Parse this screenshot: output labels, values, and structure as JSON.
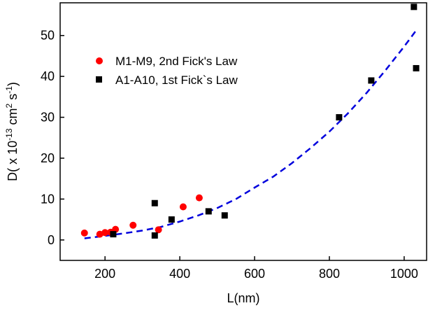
{
  "chart_data": {
    "type": "scatter",
    "xlabel": "L(nm)",
    "ylabel": {
      "base": "D( x 10",
      "exp1": "-13",
      "mid": " cm",
      "exp2": "2",
      "mid2": " s",
      "exp3": "-1",
      "end": ")"
    },
    "xlim": [
      80,
      1060
    ],
    "ylim": [
      -5,
      58
    ],
    "xticks": [
      200,
      400,
      600,
      800,
      1000
    ],
    "yticks": [
      0,
      10,
      20,
      30,
      40,
      50
    ],
    "legend_position": "upper-left",
    "series": [
      {
        "name": "M1-M9, 2nd Fick's Law",
        "marker": "circle",
        "color": "#ff0000",
        "points": [
          [
            145,
            1.7
          ],
          [
            186,
            1.4
          ],
          [
            200,
            1.8
          ],
          [
            215,
            1.9
          ],
          [
            228,
            2.6
          ],
          [
            275,
            3.6
          ],
          [
            343,
            2.5
          ],
          [
            409,
            8.1
          ],
          [
            452,
            10.3
          ]
        ]
      },
      {
        "name": "A1-A10, 1st Fick`s Law",
        "marker": "square",
        "color": "#000000",
        "points": [
          [
            222,
            1.4
          ],
          [
            333,
            9.0
          ],
          [
            333,
            1.1
          ],
          [
            378,
            5.0
          ],
          [
            477,
            7.0
          ],
          [
            520,
            6.0
          ],
          [
            826,
            30.0
          ],
          [
            912,
            39.0
          ],
          [
            1026,
            57.0
          ],
          [
            1032,
            42.0
          ]
        ]
      }
    ],
    "fit": {
      "style": "dashed",
      "color": "#0000dd",
      "points": [
        [
          145,
          0.4
        ],
        [
          200,
          1.0
        ],
        [
          250,
          1.6
        ],
        [
          300,
          2.3
        ],
        [
          350,
          3.2
        ],
        [
          400,
          4.5
        ],
        [
          450,
          6.0
        ],
        [
          500,
          7.8
        ],
        [
          550,
          10.0
        ],
        [
          600,
          12.8
        ],
        [
          650,
          15.5
        ],
        [
          700,
          18.8
        ],
        [
          750,
          22.5
        ],
        [
          800,
          26.5
        ],
        [
          850,
          31.0
        ],
        [
          900,
          36.0
        ],
        [
          950,
          41.5
        ],
        [
          1000,
          47.3
        ],
        [
          1030,
          51.0
        ]
      ]
    }
  }
}
